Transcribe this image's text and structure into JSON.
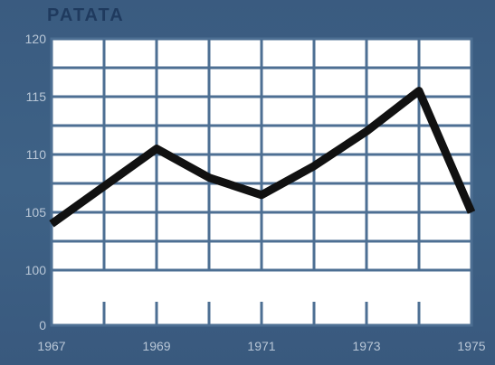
{
  "chart_data": {
    "type": "line",
    "title": "PATATA",
    "xlabel": "",
    "ylabel": "",
    "x": [
      1967,
      1969,
      1970,
      1971,
      1972,
      1973,
      1974,
      1975
    ],
    "series": [
      {
        "values": [
          104,
          110.5,
          108,
          106.5,
          109,
          112,
          115.5,
          105
        ]
      }
    ],
    "x_ticks": [
      "1967",
      "1969",
      "1971",
      "1973",
      "1975"
    ],
    "y_ticks": [
      "0",
      "100",
      "105",
      "110",
      "115",
      "120"
    ],
    "ylim_note": "axis break between 0 and 100",
    "grid": true,
    "colors": {
      "background": "#3a5d82",
      "plot_area": "#ffffff",
      "grid": "#4d6f93",
      "line": "#111111",
      "title": "#1f3a5e",
      "tick_text": "#b8c6d6"
    }
  }
}
